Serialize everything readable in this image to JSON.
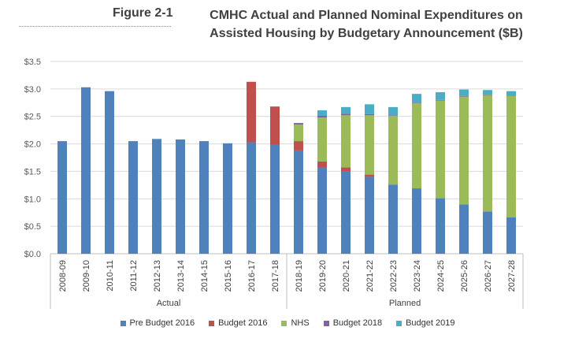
{
  "figure": {
    "label": "Figure 2-1",
    "title_line1": "CMHC Actual and Planned Nominal Expenditures on",
    "title_line2": "Assisted Housing by Budgetary Announcement ($B)"
  },
  "chart_data": {
    "type": "bar",
    "stacked": true,
    "categories": [
      "2008-09",
      "2009-10",
      "2010-11",
      "2011-12",
      "2012-13",
      "2013-14",
      "2014-15",
      "2015-16",
      "2016-17",
      "2017-18",
      "2018-19",
      "2019-20",
      "2020-21",
      "2021-22",
      "2022-23",
      "2023-24",
      "2024-25",
      "2025-26",
      "2026-27",
      "2027-28"
    ],
    "groups": [
      {
        "label": "Actual",
        "from": 0,
        "to": 9
      },
      {
        "label": "Planned",
        "from": 10,
        "to": 19
      }
    ],
    "series": [
      {
        "name": "Pre Budget 2016",
        "color": "#4F81BD",
        "values": [
          2.05,
          3.03,
          2.96,
          2.05,
          2.09,
          2.08,
          2.05,
          2.01,
          2.03,
          1.98,
          1.88,
          1.57,
          1.5,
          1.4,
          1.26,
          1.19,
          1.01,
          0.9,
          0.77,
          0.66
        ]
      },
      {
        "name": "Budget 2016",
        "color": "#C0504D",
        "values": [
          0,
          0,
          0,
          0,
          0,
          0,
          0,
          0,
          1.1,
          0.7,
          0.17,
          0.11,
          0.07,
          0.04,
          0,
          0,
          0,
          0,
          0,
          0
        ]
      },
      {
        "name": "NHS",
        "color": "#9BBB59",
        "values": [
          0,
          0,
          0,
          0,
          0,
          0,
          0,
          0,
          0,
          0,
          0.3,
          0.8,
          0.95,
          1.08,
          1.25,
          1.55,
          1.78,
          1.96,
          2.12,
          2.21
        ]
      },
      {
        "name": "Budget 2018",
        "color": "#8064A2",
        "values": [
          0,
          0,
          0,
          0,
          0,
          0,
          0,
          0,
          0,
          0,
          0.03,
          0.03,
          0.03,
          0.02,
          0.01,
          0.01,
          0.01,
          0.01,
          0.01,
          0.01
        ]
      },
      {
        "name": "Budget 2019",
        "color": "#4BACC6",
        "values": [
          0,
          0,
          0,
          0,
          0,
          0,
          0,
          0,
          0,
          0,
          0,
          0.1,
          0.12,
          0.18,
          0.15,
          0.16,
          0.14,
          0.12,
          0.08,
          0.08
        ]
      }
    ],
    "y_ticks": [
      "$0.0",
      "$0.5",
      "$1.0",
      "$1.5",
      "$2.0",
      "$2.5",
      "$3.0",
      "$3.5"
    ],
    "ylim": [
      0,
      3.5
    ],
    "grid": true,
    "legend_position": "bottom"
  }
}
